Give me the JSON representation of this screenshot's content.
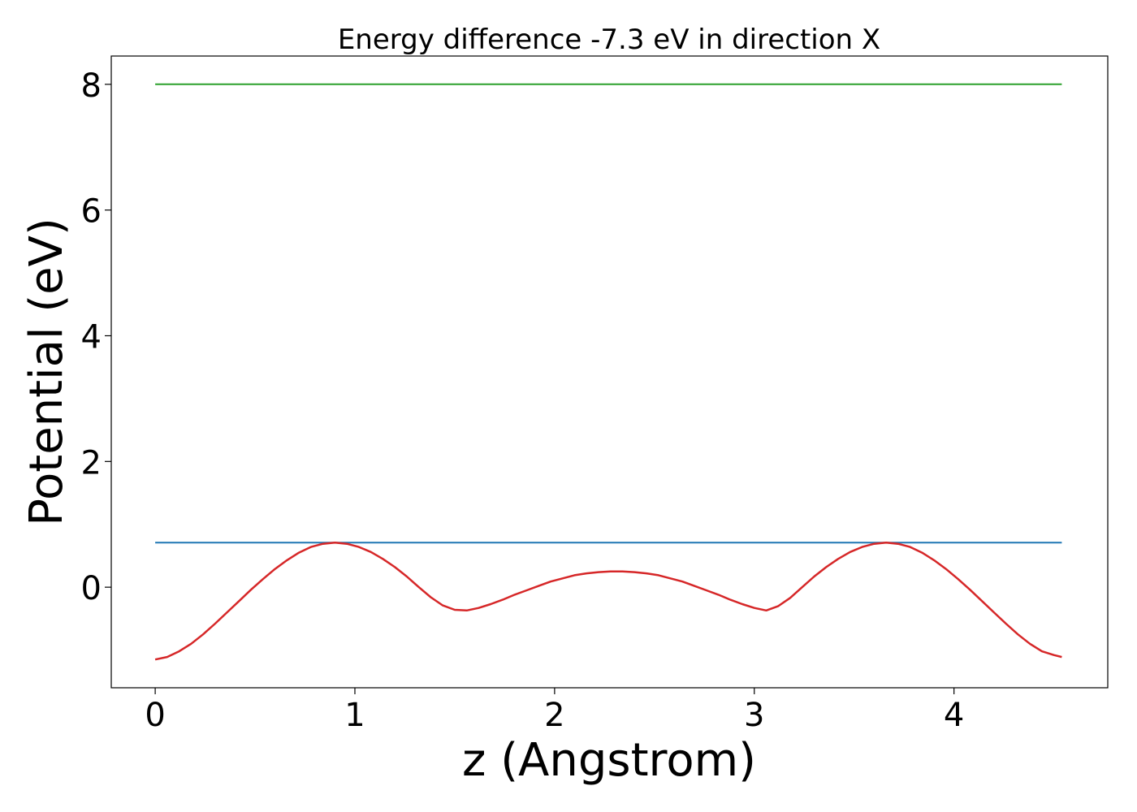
{
  "chart_data": {
    "type": "line",
    "title": "Energy difference -7.3 eV in direction X",
    "xlabel": "z (Angstrom)",
    "ylabel": "Potential (eV)",
    "xlim": [
      -0.22,
      4.77
    ],
    "ylim": [
      -1.6,
      8.45
    ],
    "xticks": [
      0,
      1,
      2,
      3,
      4
    ],
    "yticks": [
      0,
      2,
      4,
      6,
      8
    ],
    "grid": false,
    "legend": false,
    "series": [
      {
        "color": "#2ca02c",
        "x": [
          0,
          4.54
        ],
        "y": [
          8.0,
          8.0
        ]
      },
      {
        "color": "#1f77b4",
        "x": [
          0,
          4.54
        ],
        "y": [
          0.71,
          0.71
        ]
      },
      {
        "color": "#d62728",
        "x": [
          0,
          0.06,
          0.12,
          0.18,
          0.24,
          0.3,
          0.36,
          0.42,
          0.48,
          0.54,
          0.6,
          0.66,
          0.72,
          0.78,
          0.84,
          0.9,
          0.96,
          1.02,
          1.08,
          1.14,
          1.2,
          1.26,
          1.32,
          1.38,
          1.44,
          1.5,
          1.56,
          1.62,
          1.68,
          1.74,
          1.8,
          1.86,
          1.92,
          1.98,
          2.04,
          2.1,
          2.16,
          2.22,
          2.28,
          2.34,
          2.4,
          2.46,
          2.52,
          2.58,
          2.64,
          2.7,
          2.76,
          2.82,
          2.88,
          2.94,
          3.0,
          3.06,
          3.12,
          3.18,
          3.24,
          3.3,
          3.36,
          3.42,
          3.48,
          3.54,
          3.6,
          3.66,
          3.72,
          3.78,
          3.84,
          3.9,
          3.96,
          4.02,
          4.08,
          4.14,
          4.2,
          4.26,
          4.32,
          4.38,
          4.44,
          4.5,
          4.54
        ],
        "y": [
          -1.15,
          -1.11,
          -1.02,
          -0.9,
          -0.75,
          -0.58,
          -0.4,
          -0.22,
          -0.04,
          0.13,
          0.29,
          0.43,
          0.55,
          0.64,
          0.69,
          0.71,
          0.69,
          0.64,
          0.56,
          0.45,
          0.32,
          0.17,
          0.0,
          -0.16,
          -0.29,
          -0.36,
          -0.37,
          -0.33,
          -0.27,
          -0.2,
          -0.12,
          -0.05,
          0.02,
          0.09,
          0.14,
          0.19,
          0.22,
          0.24,
          0.25,
          0.25,
          0.24,
          0.22,
          0.19,
          0.14,
          0.09,
          0.02,
          -0.05,
          -0.12,
          -0.2,
          -0.27,
          -0.33,
          -0.37,
          -0.3,
          -0.17,
          0.0,
          0.17,
          0.32,
          0.45,
          0.56,
          0.64,
          0.69,
          0.71,
          0.69,
          0.64,
          0.55,
          0.43,
          0.29,
          0.13,
          -0.04,
          -0.22,
          -0.4,
          -0.58,
          -0.75,
          -0.9,
          -1.02,
          -1.08,
          -1.11
        ]
      }
    ]
  }
}
